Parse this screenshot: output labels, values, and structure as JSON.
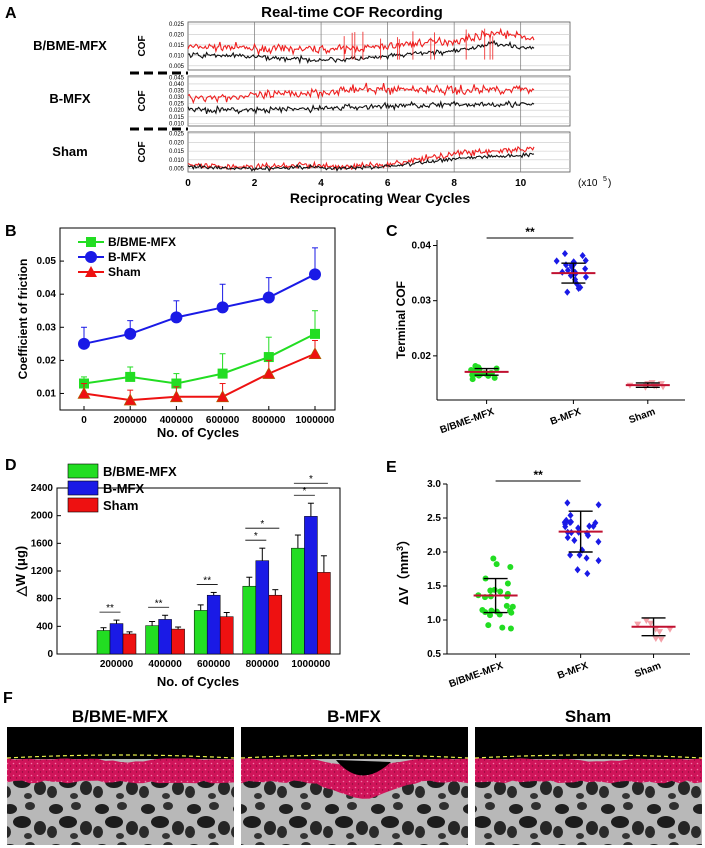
{
  "figure": {
    "panel_labels": [
      "A",
      "B",
      "C",
      "D",
      "E",
      "F"
    ],
    "groups": [
      "B/BME-MFX",
      "B-MFX",
      "Sham"
    ],
    "colors": {
      "B/BME-MFX": "#22dd22",
      "B-MFX": "#1a1ae6",
      "Sham": "#ee1111",
      "red_trace": "#ee2020",
      "black_trace": "#111111",
      "crimson": "#d0145a"
    }
  },
  "panelA": {
    "title": "Real-time COF Recording",
    "xlabel": "Reciprocating Wear Cycles",
    "x_unit": "(x10",
    "x_unit_exp": "5",
    "x_unit_close": ")",
    "ylabel": "COF",
    "x_ticks": [
      "0",
      "2",
      "4",
      "6",
      "8",
      "10"
    ],
    "rows": [
      {
        "label": "B/BME-MFX",
        "y_ticks": [
          "0.025",
          "0.020",
          "0.015",
          "0.010",
          "0.005"
        ],
        "yrange": [
          0.003,
          0.026
        ],
        "red": [
          0.014,
          0.014,
          0.013,
          0.013,
          0.013,
          0.014,
          0.016,
          0.017,
          0.021,
          0.018
        ],
        "black": [
          0.01,
          0.01,
          0.009,
          0.008,
          0.008,
          0.009,
          0.011,
          0.012,
          0.016,
          0.013
        ]
      },
      {
        "label": "B-MFX",
        "y_ticks": [
          "0.045",
          "0.040",
          "0.035",
          "0.030",
          "0.025",
          "0.020",
          "0.015",
          "0.010"
        ],
        "yrange": [
          0.008,
          0.046
        ],
        "red": [
          0.03,
          0.03,
          0.031,
          0.033,
          0.035,
          0.036,
          0.036,
          0.035,
          0.036,
          0.036
        ],
        "black": [
          0.021,
          0.02,
          0.02,
          0.021,
          0.022,
          0.023,
          0.024,
          0.024,
          0.025,
          0.024
        ]
      },
      {
        "label": "Sham",
        "y_ticks": [
          "0.025",
          "0.020",
          "0.015",
          "0.010",
          "0.005"
        ],
        "yrange": [
          0.003,
          0.026
        ],
        "red": [
          0.007,
          0.006,
          0.006,
          0.007,
          0.006,
          0.007,
          0.01,
          0.014,
          0.015,
          0.016
        ],
        "black": [
          0.006,
          0.005,
          0.005,
          0.006,
          0.005,
          0.006,
          0.008,
          0.011,
          0.012,
          0.013
        ]
      }
    ]
  },
  "chart_data": [
    {
      "panel": "B",
      "type": "line",
      "x": [
        0,
        200000,
        400000,
        600000,
        800000,
        1000000
      ],
      "x_ticks": [
        "0",
        "200000",
        "400000",
        "600000",
        "800000",
        "1000000"
      ],
      "y_ticks": [
        "0.01",
        "0.02",
        "0.03",
        "0.04",
        "0.05"
      ],
      "xlabel": "No. of Cycles",
      "ylabel": "Coefficient of friction",
      "ylim": [
        0.005,
        0.06
      ],
      "series": [
        {
          "name": "B/BME-MFX",
          "marker": "square",
          "values": [
            0.013,
            0.015,
            0.013,
            0.016,
            0.021,
            0.028
          ],
          "err": [
            0.002,
            0.003,
            0.003,
            0.006,
            0.006,
            0.007
          ]
        },
        {
          "name": "B-MFX",
          "marker": "circle",
          "values": [
            0.025,
            0.028,
            0.033,
            0.036,
            0.039,
            0.046
          ],
          "err": [
            0.005,
            0.004,
            0.005,
            0.007,
            0.006,
            0.008
          ]
        },
        {
          "name": "Sham",
          "marker": "triangle",
          "values": [
            0.01,
            0.008,
            0.009,
            0.009,
            0.016,
            0.022
          ],
          "err": [
            0.003,
            0.003,
            0.003,
            0.004,
            0.004,
            0.004
          ]
        }
      ]
    },
    {
      "panel": "C",
      "type": "scatter",
      "ylabel": "Terminal COF",
      "categories": [
        "B/BME-MFX",
        "B-MFX",
        "Sham"
      ],
      "y_ticks": [
        "0.02",
        "0.03",
        "0.04"
      ],
      "ylim": [
        0.012,
        0.041
      ],
      "means": [
        0.0171,
        0.035,
        0.0147
      ],
      "sd": [
        0.0006,
        0.0018,
        0.0004
      ],
      "n": [
        22,
        24,
        10
      ],
      "spread": [
        0.0012,
        0.004,
        0.0005
      ],
      "significance": "**"
    },
    {
      "panel": "D",
      "type": "bar",
      "categories": [
        "200000",
        "400000",
        "600000",
        "800000",
        "1000000"
      ],
      "xlabel": "No. of Cycles",
      "ylabel": "△W (μg)",
      "y_ticks": [
        "0",
        "400",
        "800",
        "1200",
        "1600",
        "2000",
        "2400"
      ],
      "ylim": [
        0,
        2400
      ],
      "series": [
        {
          "name": "B/BME-MFX",
          "values": [
            340,
            410,
            630,
            980,
            1530
          ],
          "err": [
            40,
            60,
            80,
            130,
            190
          ]
        },
        {
          "name": "B-MFX",
          "values": [
            440,
            500,
            850,
            1350,
            1990
          ],
          "err": [
            50,
            60,
            40,
            180,
            190
          ]
        },
        {
          "name": "Sham",
          "values": [
            290,
            360,
            540,
            850,
            1180
          ],
          "err": [
            30,
            30,
            60,
            80,
            240
          ]
        }
      ],
      "significance": [
        "**",
        "**",
        "**",
        "*",
        "*",
        "*",
        "*"
      ]
    },
    {
      "panel": "E",
      "type": "scatter",
      "ylabel": "ΔV（mm",
      "ylabel_exp": "3",
      "ylabel_close": "）",
      "categories": [
        "B/BME-MFX",
        "B-MFX",
        "Sham"
      ],
      "y_ticks": [
        "0.5",
        "1.0",
        "1.5",
        "2.0",
        "2.5",
        "3.0"
      ],
      "ylim": [
        0.5,
        3.0
      ],
      "means": [
        1.36,
        2.3,
        0.9
      ],
      "sd": [
        0.25,
        0.3,
        0.13
      ],
      "n": [
        26,
        28,
        8
      ],
      "spread": [
        0.55,
        0.6,
        0.25
      ],
      "significance": "**"
    }
  ],
  "panelF": {
    "labels": [
      "B/BME-MFX",
      "B-MFX",
      "Sham"
    ]
  }
}
